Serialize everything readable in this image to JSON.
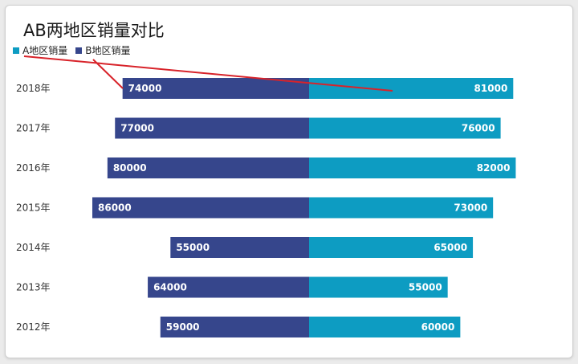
{
  "title": "AB两地区销量对比",
  "colors": {
    "series_a": "#0d9cc2",
    "series_b": "#36468c",
    "annotation": "#d8232a"
  },
  "chart_data": {
    "type": "bar",
    "orientation": "horizontal-butterfly",
    "title": "AB两地区销量对比",
    "categories": [
      "2018年",
      "2017年",
      "2016年",
      "2015年",
      "2014年",
      "2013年",
      "2012年"
    ],
    "series": [
      {
        "name": "A地区销量",
        "side": "right",
        "values": [
          81000,
          76000,
          82000,
          73000,
          65000,
          55000,
          60000
        ]
      },
      {
        "name": "B地区销量",
        "side": "left",
        "values": [
          74000,
          77000,
          80000,
          86000,
          55000,
          64000,
          59000
        ]
      }
    ],
    "legend": "top-left",
    "grid": false
  }
}
